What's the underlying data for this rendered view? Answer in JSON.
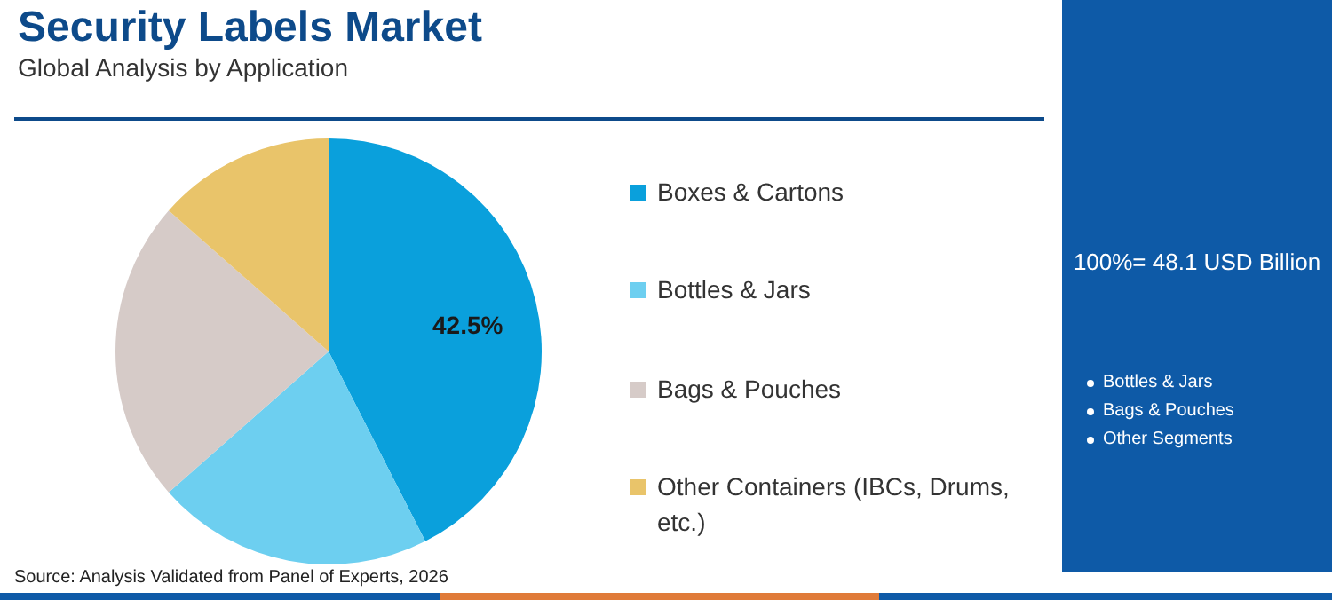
{
  "chart_data": {
    "type": "pie",
    "title": "Security Labels Market",
    "subtitle": "Global Analysis by Application",
    "categories": [
      "Boxes & Cartons",
      "Bottles & Jars",
      "Bags & Pouches",
      "Other Containers (IBCs, Drums, etc.)"
    ],
    "values": [
      42.5,
      21,
      23,
      13.5
    ],
    "colors": [
      "#0aa0dc",
      "#6dcff0",
      "#d6cbc8",
      "#e9c46a"
    ],
    "value_labels": [
      "42.5%",
      null,
      null,
      null
    ],
    "legend": "right",
    "annotations": [
      "100%= 48.1 USD Billion",
      "Bottles & Jars",
      "Bags & Pouches",
      "Other Segments",
      "Source: Analysis Validated from Panel of Experts, 2026"
    ]
  }
}
